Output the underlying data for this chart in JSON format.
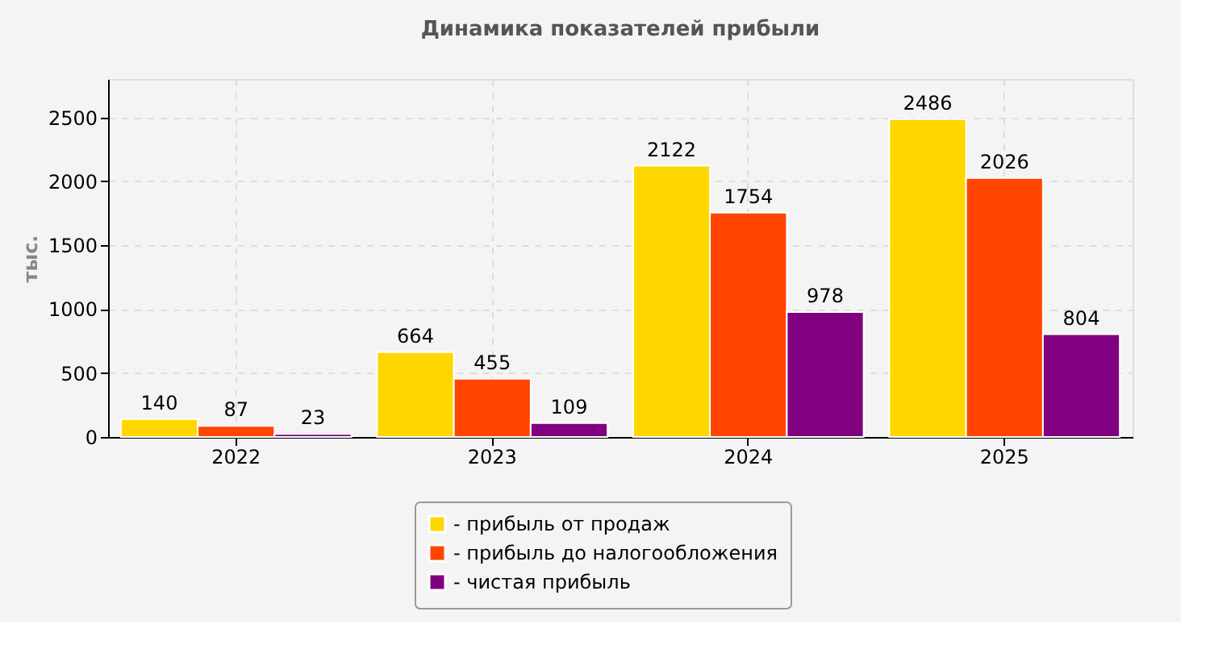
{
  "chart_data": {
    "type": "bar",
    "title": "Динамика показателей прибыли",
    "ylabel": "тыс.",
    "categories": [
      "2022",
      "2023",
      "2024",
      "2025"
    ],
    "series": [
      {
        "name": "- прибыль от продаж",
        "color": "#ffd700",
        "values": [
          140,
          664,
          2122,
          2486
        ]
      },
      {
        "name": "- прибыль до налогообложения",
        "color": "#ff4500",
        "values": [
          87,
          455,
          1754,
          2026
        ]
      },
      {
        "name": "- чистая прибыль",
        "color": "#800080",
        "values": [
          23,
          109,
          978,
          804
        ]
      }
    ],
    "ylim": [
      0,
      2800
    ],
    "yticks": [
      0,
      500,
      1000,
      1500,
      2000,
      2500
    ],
    "grid": true,
    "legend": "bottom",
    "data_labels": true
  }
}
